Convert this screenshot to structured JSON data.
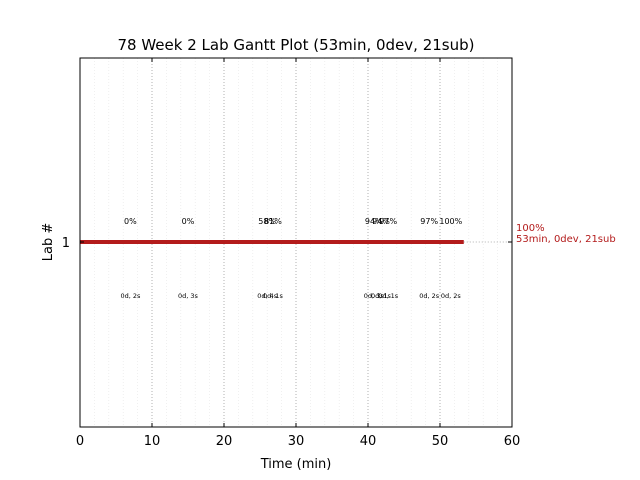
{
  "chart_data": {
    "type": "gantt",
    "title": "78 Week 2 Lab Gantt Plot (53min, 0dev, 21sub)",
    "xlabel": "Time (min)",
    "ylabel": "Lab #",
    "xlim": [
      0,
      60
    ],
    "x_ticks": [
      "0",
      "10",
      "20",
      "30",
      "40",
      "50",
      "60"
    ],
    "y_ticks": [
      "1"
    ],
    "grid": "vertical dotted",
    "colors": {
      "bar": "#b31b1b",
      "end_label": "#b31b1b",
      "grid": "#b0b0b0"
    },
    "bar": {
      "lab": 1,
      "start": 0,
      "end": 53.3
    },
    "end_label": {
      "pct": "100%",
      "summary": "53min, 0dev, 21sub"
    },
    "checkpoints": [
      {
        "x": 7,
        "pct": "0%",
        "sub": "0d, 2s"
      },
      {
        "x": 15,
        "pct": "0%",
        "sub": "0d, 3s"
      },
      {
        "x": 26,
        "pct": "58%",
        "sub": "0d, 4s"
      },
      {
        "x": 26.8,
        "pct": "81%",
        "sub": "0d, 1s"
      },
      {
        "x": 40.8,
        "pct": "94%",
        "sub": "0d, 3s"
      },
      {
        "x": 41.8,
        "pct": "94%",
        "sub": "0d, 1s"
      },
      {
        "x": 42.8,
        "pct": "97%",
        "sub": "0d, 1s"
      },
      {
        "x": 48.5,
        "pct": "97%",
        "sub": "0d, 2s"
      },
      {
        "x": 51.5,
        "pct": "100%",
        "sub": "0d, 2s"
      }
    ]
  }
}
